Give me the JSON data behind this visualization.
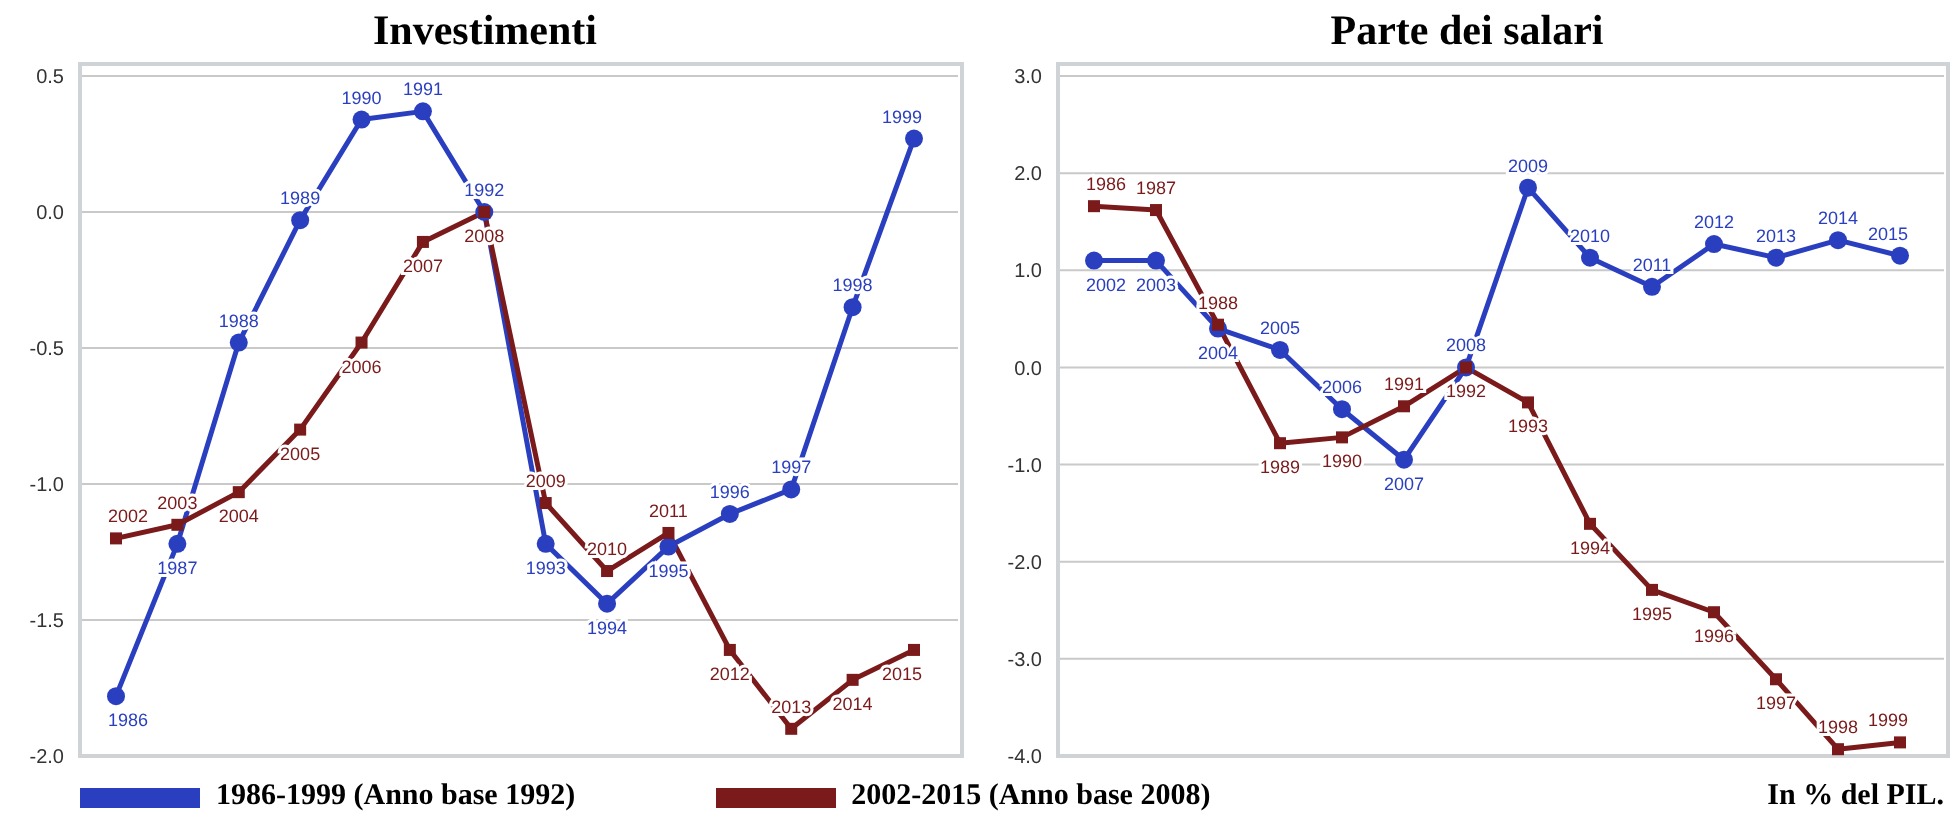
{
  "chart_data": [
    {
      "type": "line",
      "title": "Investimenti",
      "categories": [
        null,
        null,
        null,
        null,
        null,
        null,
        null,
        null,
        null,
        null,
        null,
        null,
        null,
        null
      ],
      "ylim": [
        -2.0,
        0.5
      ],
      "yticks": [
        {
          "value": -2.0,
          "label": "-2.0"
        },
        {
          "value": -1.5,
          "label": "-1.5"
        },
        {
          "value": -1.0,
          "label": "-1.0"
        },
        {
          "value": -0.5,
          "label": "-0.5"
        },
        {
          "value": 0.0,
          "label": "0.0"
        },
        {
          "value": 0.5,
          "label": "0.5"
        }
      ],
      "grid": "y",
      "legend": "bottom",
      "line_style": "solid",
      "series": [
        {
          "name": "1986-1999 (Anno base 1992)",
          "color": "#2a3fbf",
          "marker": "circle",
          "values": [
            -1.78,
            -1.22,
            -0.48,
            -0.03,
            0.34,
            0.37,
            0.0,
            -1.22,
            -1.44,
            -1.23,
            -1.11,
            -1.02,
            -0.35,
            0.27
          ]
        },
        {
          "name": "2002-2015 (Anno base 2008)",
          "color": "#7a1a1a",
          "marker": "square",
          "values": [
            -1.2,
            -1.15,
            -1.03,
            -0.8,
            -0.48,
            -0.11,
            0.0,
            -1.07,
            -1.32,
            -1.18,
            -1.61,
            -1.9,
            -1.72,
            -1.61
          ]
        }
      ],
      "annotations": [
        {
          "text": "1986",
          "y": -1.78
        },
        {
          "text": "1987",
          "y": -1.22
        },
        {
          "text": "1988",
          "y": -0.48
        },
        {
          "text": "1989",
          "y": -0.03
        },
        {
          "text": "1990",
          "y": 0.34
        },
        {
          "text": "1991",
          "y": 0.37
        },
        {
          "text": "1992",
          "y": 0.0
        },
        {
          "text": "1993",
          "y": -1.22
        },
        {
          "text": "1994",
          "y": -1.44
        },
        {
          "text": "1995",
          "y": -1.23
        },
        {
          "text": "1996",
          "y": -1.11
        },
        {
          "text": "1997",
          "y": -1.02
        },
        {
          "text": "1998",
          "y": -0.35
        },
        {
          "text": "1999",
          "y": 0.27
        },
        {
          "text": "2002",
          "y": -1.2
        },
        {
          "text": "2003",
          "y": -1.15
        },
        {
          "text": "2004",
          "y": -1.03
        },
        {
          "text": "2005",
          "y": -0.8
        },
        {
          "text": "2006",
          "y": -0.48
        },
        {
          "text": "2007",
          "y": -0.11
        },
        {
          "text": "2008",
          "y": 0.0
        },
        {
          "text": "2009",
          "y": -1.07
        },
        {
          "text": "2010",
          "y": -1.32
        },
        {
          "text": "2011",
          "y": -1.18
        },
        {
          "text": "2012",
          "y": -1.61
        },
        {
          "text": "2013",
          "y": -1.9
        },
        {
          "text": "2014",
          "y": -1.72
        },
        {
          "text": "2015",
          "y": -1.61
        }
      ]
    },
    {
      "type": "line",
      "title": "Parte dei salari",
      "categories": [
        null,
        null,
        null,
        null,
        null,
        null,
        null,
        null,
        null,
        null,
        null,
        null,
        null,
        null
      ],
      "ylim": [
        -4.0,
        3.0
      ],
      "yticks": [
        {
          "value": -4.0,
          "label": "-4.0"
        },
        {
          "value": -3.0,
          "label": "-3.0"
        },
        {
          "value": -2.0,
          "label": "-2.0"
        },
        {
          "value": -1.0,
          "label": "-1.0"
        },
        {
          "value": 0.0,
          "label": "0.0"
        },
        {
          "value": 1.0,
          "label": "1.0"
        },
        {
          "value": 2.0,
          "label": "2.0"
        },
        {
          "value": 3.0,
          "label": "3.0"
        }
      ],
      "grid": "y",
      "line_style": "solid",
      "series": [
        {
          "color": "#2a3fbf",
          "marker": "circle",
          "values": [
            1.1,
            1.1,
            0.4,
            0.18,
            -0.43,
            -0.95,
            0.0,
            1.85,
            1.13,
            0.83,
            1.27,
            1.13,
            1.31,
            1.15
          ]
        },
        {
          "color": "#7a1a1a",
          "marker": "square",
          "values": [
            1.66,
            1.62,
            0.44,
            -0.78,
            -0.72,
            -0.4,
            0.0,
            -0.36,
            -1.61,
            -2.29,
            -2.52,
            -3.21,
            -3.93,
            -3.86
          ]
        }
      ],
      "annotations": [
        {
          "text": "2002",
          "y": 1.1
        },
        {
          "text": "2003",
          "y": 1.1
        },
        {
          "text": "2004",
          "y": 0.4
        },
        {
          "text": "2005",
          "y": 0.18
        },
        {
          "text": "2006",
          "y": -0.43
        },
        {
          "text": "2007",
          "y": -0.95
        },
        {
          "text": "2008",
          "y": 0.0
        },
        {
          "text": "2009",
          "y": 1.85
        },
        {
          "text": "2010",
          "y": 1.13
        },
        {
          "text": "2011",
          "y": 0.83
        },
        {
          "text": "2012",
          "y": 1.27
        },
        {
          "text": "2013",
          "y": 1.13
        },
        {
          "text": "2014",
          "y": 1.31
        },
        {
          "text": "2015",
          "y": 1.15
        },
        {
          "text": "1986",
          "y": 1.66
        },
        {
          "text": "1987",
          "y": 1.62
        },
        {
          "text": "1988",
          "y": 0.44
        },
        {
          "text": "1989",
          "y": -0.78
        },
        {
          "text": "1990",
          "y": -0.72
        },
        {
          "text": "1991",
          "y": -0.4
        },
        {
          "text": "1992",
          "y": 0.0
        },
        {
          "text": "1993",
          "y": -0.36
        },
        {
          "text": "1994",
          "y": -1.61
        },
        {
          "text": "1995",
          "y": -2.29
        },
        {
          "text": "1996",
          "y": -2.52
        },
        {
          "text": "1997",
          "y": -3.21
        },
        {
          "text": "1998",
          "y": -3.93
        },
        {
          "text": "1999",
          "y": -3.86
        },
        "In % del PIL."
      ]
    }
  ]
}
